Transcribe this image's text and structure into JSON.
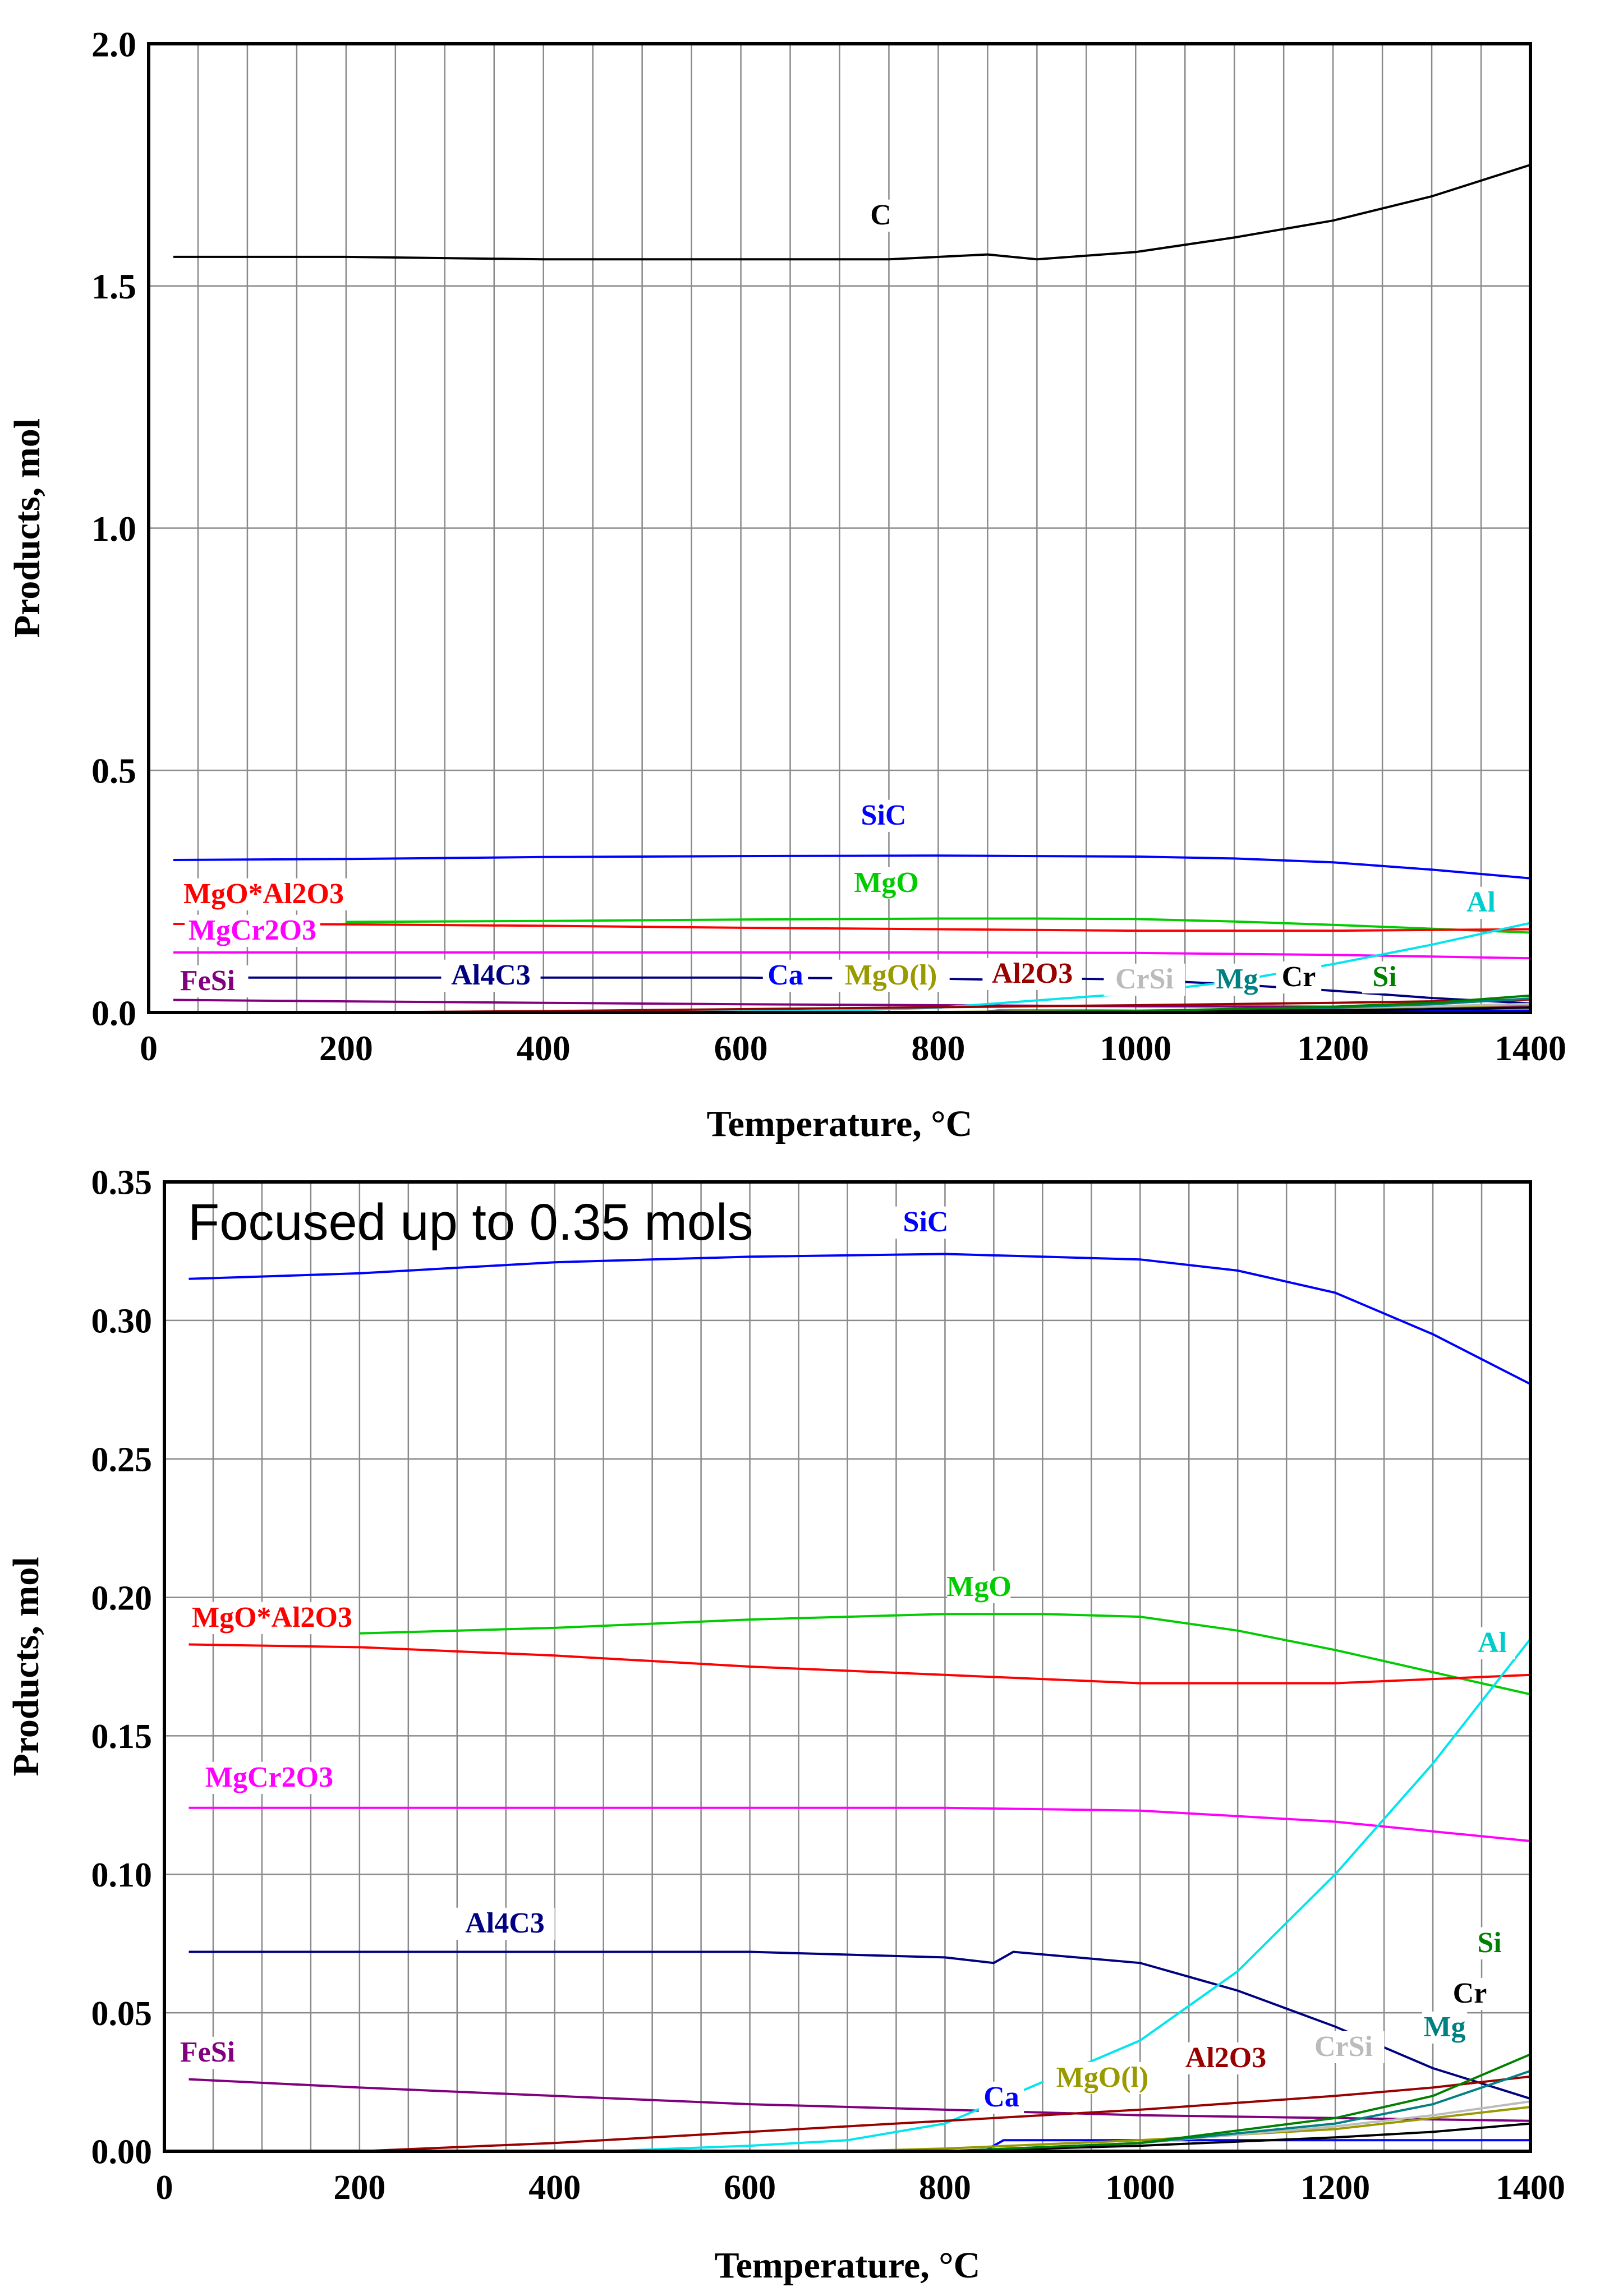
{
  "chart_data": [
    {
      "type": "line",
      "xlabel": "Temperature, °C",
      "ylabel": "Products, mol",
      "xlim": [
        0,
        1400
      ],
      "ylim": [
        0,
        2.0
      ],
      "xticks": [
        0,
        200,
        400,
        600,
        800,
        1000,
        1200,
        1400
      ],
      "yticks": [
        0.0,
        0.5,
        1.0,
        1.5,
        2.0
      ],
      "ytick_labels": [
        "0.0",
        "0.5",
        "1.0",
        "1.5",
        "2.0"
      ],
      "grid": true,
      "series": [
        {
          "name": "C",
          "color": "#000000",
          "x": [
            25,
            200,
            400,
            600,
            750,
            850,
            900,
            1000,
            1100,
            1200,
            1300,
            1400
          ],
          "y": [
            1.56,
            1.56,
            1.555,
            1.555,
            1.555,
            1.565,
            1.555,
            1.57,
            1.6,
            1.635,
            1.685,
            1.75
          ]
        },
        {
          "name": "SiC",
          "color": "#0000ff",
          "x": [
            25,
            200,
            400,
            600,
            800,
            900,
            1000,
            1100,
            1200,
            1300,
            1400
          ],
          "y": [
            0.315,
            0.317,
            0.321,
            0.323,
            0.324,
            0.323,
            0.322,
            0.318,
            0.31,
            0.295,
            0.277
          ]
        },
        {
          "name": "MgO",
          "color": "#00cc00",
          "x": [
            200,
            400,
            600,
            800,
            900,
            1000,
            1100,
            1200,
            1300,
            1400
          ],
          "y": [
            0.187,
            0.189,
            0.192,
            0.194,
            0.194,
            0.193,
            0.188,
            0.181,
            0.173,
            0.165
          ]
        },
        {
          "name": "MgO*Al2O3",
          "color": "#ff0000",
          "x": [
            25,
            200,
            400,
            600,
            800,
            1000,
            1200,
            1400
          ],
          "y": [
            0.183,
            0.182,
            0.179,
            0.175,
            0.172,
            0.169,
            0.169,
            0.172
          ]
        },
        {
          "name": "MgCr2O3",
          "color": "#ff00ff",
          "x": [
            25,
            200,
            400,
            600,
            800,
            1000,
            1200,
            1400
          ],
          "y": [
            0.124,
            0.124,
            0.124,
            0.124,
            0.124,
            0.123,
            0.119,
            0.112
          ]
        },
        {
          "name": "Al4C3",
          "color": "#000080",
          "x": [
            25,
            200,
            400,
            600,
            800,
            850,
            870,
            1000,
            1100,
            1200,
            1300,
            1400
          ],
          "y": [
            0.072,
            0.072,
            0.072,
            0.072,
            0.07,
            0.068,
            0.072,
            0.068,
            0.058,
            0.045,
            0.03,
            0.019
          ]
        },
        {
          "name": "FeSi",
          "color": "#800080",
          "x": [
            25,
            200,
            400,
            600,
            800,
            1000,
            1200,
            1400
          ],
          "y": [
            0.026,
            0.023,
            0.02,
            0.017,
            0.015,
            0.013,
            0.012,
            0.011
          ]
        },
        {
          "name": "Al",
          "color": "#00e5ee",
          "x": [
            450,
            600,
            700,
            800,
            900,
            1000,
            1100,
            1200,
            1300,
            1400
          ],
          "y": [
            0.0,
            0.002,
            0.004,
            0.01,
            0.025,
            0.04,
            0.065,
            0.1,
            0.14,
            0.185
          ]
        },
        {
          "name": "Ca",
          "color": "#0000ff",
          "x": [
            25,
            840,
            860,
            1000,
            1200,
            1400
          ],
          "y": [
            0.0,
            0.0,
            0.004,
            0.004,
            0.004,
            0.004
          ]
        },
        {
          "name": "MgO(l)",
          "color": "#999900",
          "x": [
            700,
            800,
            1000,
            1200,
            1300,
            1400
          ],
          "y": [
            0.0,
            0.001,
            0.004,
            0.008,
            0.012,
            0.016
          ]
        },
        {
          "name": "Al2O3",
          "color": "#990000",
          "x": [
            200,
            400,
            600,
            800,
            1000,
            1200,
            1300,
            1400
          ],
          "y": [
            0.0,
            0.003,
            0.007,
            0.011,
            0.015,
            0.02,
            0.023,
            0.027
          ]
        },
        {
          "name": "CrSi",
          "color": "#bbbbbb",
          "x": [
            850,
            1000,
            1200,
            1300,
            1400
          ],
          "y": [
            0.0,
            0.003,
            0.009,
            0.013,
            0.018
          ]
        },
        {
          "name": "Mg",
          "color": "#008080",
          "x": [
            800,
            1000,
            1200,
            1300,
            1400
          ],
          "y": [
            0.0,
            0.003,
            0.01,
            0.017,
            0.029
          ]
        },
        {
          "name": "Cr",
          "color": "#000000",
          "x": [
            800,
            1000,
            1200,
            1300,
            1400
          ],
          "y": [
            0.0,
            0.002,
            0.005,
            0.007,
            0.01
          ]
        },
        {
          "name": "Si",
          "color": "#008000",
          "x": [
            800,
            1000,
            1200,
            1300,
            1400
          ],
          "y": [
            0.0,
            0.003,
            0.012,
            0.02,
            0.035
          ]
        }
      ]
    },
    {
      "type": "line",
      "annotation": "Focused up to 0.35 mols",
      "xlabel": "Temperature, °C",
      "ylabel": "Products, mol",
      "xlim": [
        0,
        1400
      ],
      "ylim": [
        0,
        0.35
      ],
      "xticks": [
        0,
        200,
        400,
        600,
        800,
        1000,
        1200,
        1400
      ],
      "yticks": [
        0.0,
        0.05,
        0.1,
        0.15,
        0.2,
        0.25,
        0.3,
        0.35
      ],
      "ytick_labels": [
        "0.00",
        "0.05",
        "0.10",
        "0.15",
        "0.20",
        "0.25",
        "0.30",
        "0.35"
      ],
      "grid": true,
      "series_ref": "same data as first chart (C off-scale)"
    }
  ],
  "labels_top": {
    "C": "C",
    "SiC": "SiC",
    "MgO": "MgO",
    "MgO*Al2O3": "MgO*Al2O3",
    "MgCr2O3": "MgCr2O3",
    "Al": "Al",
    "FeSi": "FeSi",
    "Al4C3": "Al4C3",
    "Ca": "Ca",
    "MgO(l)": "MgO(l)",
    "Al2O3": "Al2O3",
    "CrSi": "CrSi",
    "Mg": "Mg",
    "Cr": "Cr",
    "Si": "Si"
  }
}
